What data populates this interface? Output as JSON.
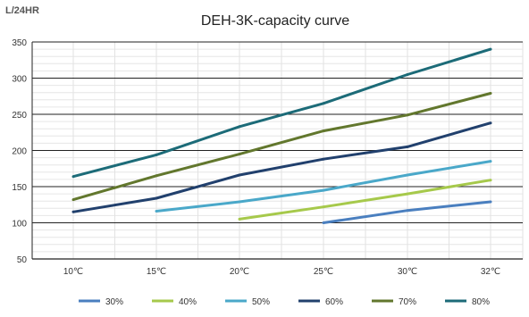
{
  "chart_data": {
    "type": "line",
    "title": "DEH-3K-capacity curve",
    "unit_label": "L/24HR",
    "xlabel": "",
    "ylabel": "",
    "categories": [
      "10℃",
      "15℃",
      "20℃",
      "25℃",
      "30℃",
      "32℃"
    ],
    "x_values": [
      10,
      15,
      20,
      25,
      30,
      32
    ],
    "ylim": [
      50,
      350
    ],
    "yticks": [
      50,
      100,
      150,
      200,
      250,
      300,
      350
    ],
    "grid": {
      "horizontal_major": true,
      "horizontal_minor": true,
      "vertical": true
    },
    "legend_position": "bottom",
    "series": [
      {
        "name": "30%",
        "color": "#4a7fbf",
        "points": [
          [
            25,
            100
          ],
          [
            30,
            117
          ],
          [
            32,
            129
          ]
        ]
      },
      {
        "name": "40%",
        "color": "#a6c94b",
        "points": [
          [
            20,
            105
          ],
          [
            25,
            122
          ],
          [
            30,
            140
          ],
          [
            32,
            159
          ]
        ]
      },
      {
        "name": "50%",
        "color": "#4aa8c9",
        "points": [
          [
            15,
            116
          ],
          [
            20,
            129
          ],
          [
            25,
            145
          ],
          [
            30,
            166
          ],
          [
            32,
            185
          ]
        ]
      },
      {
        "name": "60%",
        "color": "#21406d",
        "points": [
          [
            10,
            115
          ],
          [
            15,
            134
          ],
          [
            20,
            166
          ],
          [
            25,
            188
          ],
          [
            30,
            205
          ],
          [
            32,
            238
          ]
        ]
      },
      {
        "name": "70%",
        "color": "#62772d",
        "points": [
          [
            10,
            132
          ],
          [
            15,
            165
          ],
          [
            20,
            195
          ],
          [
            25,
            227
          ],
          [
            30,
            249
          ],
          [
            32,
            279
          ]
        ]
      },
      {
        "name": "80%",
        "color": "#1c6b78",
        "points": [
          [
            10,
            164
          ],
          [
            15,
            194
          ],
          [
            20,
            233
          ],
          [
            25,
            265
          ],
          [
            30,
            305
          ],
          [
            32,
            340
          ]
        ]
      }
    ]
  }
}
